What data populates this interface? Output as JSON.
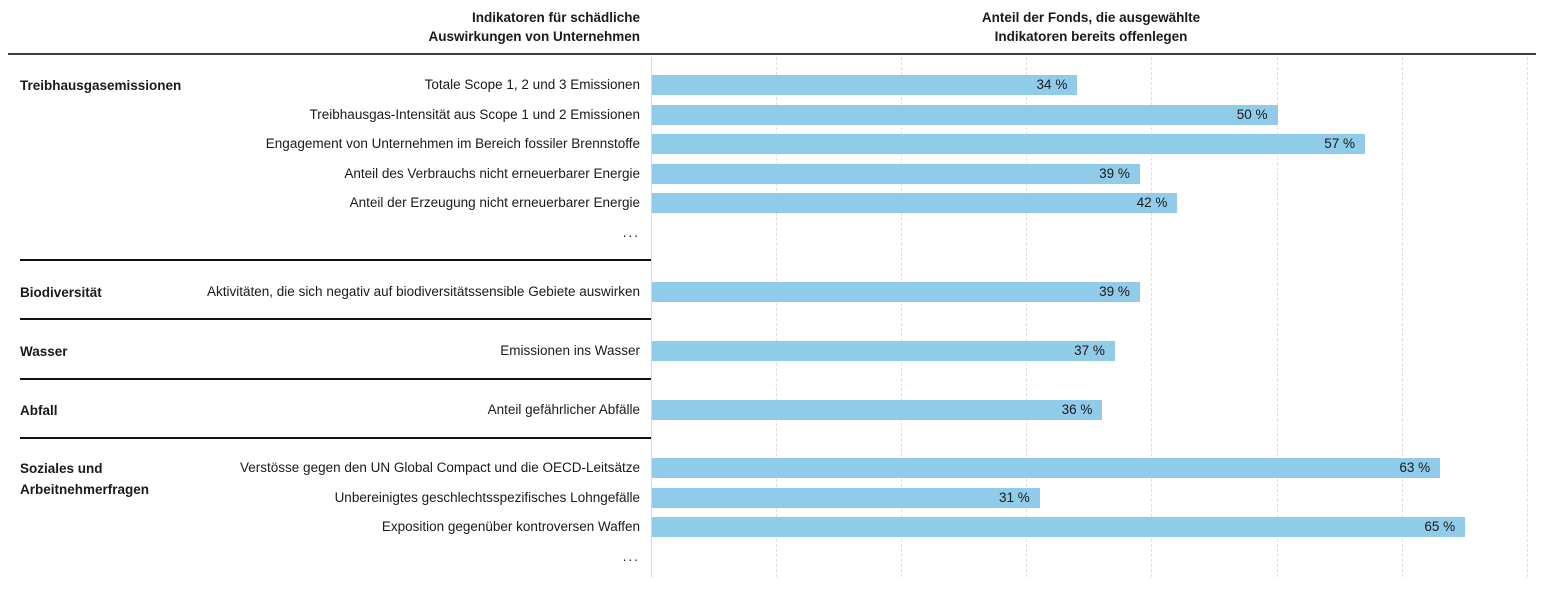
{
  "colors": {
    "bar": "#90CBE9",
    "grid": "#DDDDDD",
    "axis_line": "#D6D6D6",
    "rule": "#3F3F3F",
    "separator": "#111111",
    "text": "#1A1A1A"
  },
  "chart_data": {
    "type": "bar",
    "orientation": "horizontal",
    "unit": "%",
    "value_format": "{v} %",
    "column_headers": {
      "left": "Indikatoren für schädliche\nAuswirkungen von Unternehmen",
      "right": "Anteil der Fonds, die ausgewählte\nIndikatoren bereits offenlegen"
    },
    "axis": {
      "min": 0,
      "max": 70,
      "gridline_step": 10,
      "gridline_style": "dashed",
      "tick_labels_shown": false
    },
    "sections": [
      {
        "category": "Treibhausgasemissionen",
        "rows": [
          {
            "label": "Totale Scope 1, 2 und 3 Emissionen",
            "value": 34
          },
          {
            "label": "Treibhausgas-Intensität aus Scope 1 und 2 Emissionen",
            "value": 50
          },
          {
            "label": "Engagement von Unternehmen im Bereich fossiler Brennstoffe",
            "value": 57
          },
          {
            "label": "Anteil des Verbrauchs nicht erneuerbarer Energie",
            "value": 39
          },
          {
            "label": "Anteil der Erzeugung nicht erneuerbarer Energie",
            "value": 42
          },
          {
            "label": "...",
            "value": null
          }
        ]
      },
      {
        "category": "Biodiversität",
        "rows": [
          {
            "label": "Aktivitäten, die sich negativ auf biodiversitätssensible Gebiete auswirken",
            "value": 39
          }
        ]
      },
      {
        "category": "Wasser",
        "rows": [
          {
            "label": "Emissionen ins Wasser",
            "value": 37
          }
        ]
      },
      {
        "category": "Abfall",
        "rows": [
          {
            "label": "Anteil gefährlicher Abfälle",
            "value": 36
          }
        ]
      },
      {
        "category": "Soziales und\nArbeitnehmerfragen",
        "rows": [
          {
            "label": "Verstösse gegen den UN Global Compact und die OECD-Leitsätze",
            "value": 63
          },
          {
            "label": "Unbereinigtes geschlechtsspezifisches Lohngefälle",
            "value": 31
          },
          {
            "label": "Exposition gegenüber kontroversen Waffen",
            "value": 65
          },
          {
            "label": "...",
            "value": null
          }
        ]
      }
    ]
  }
}
